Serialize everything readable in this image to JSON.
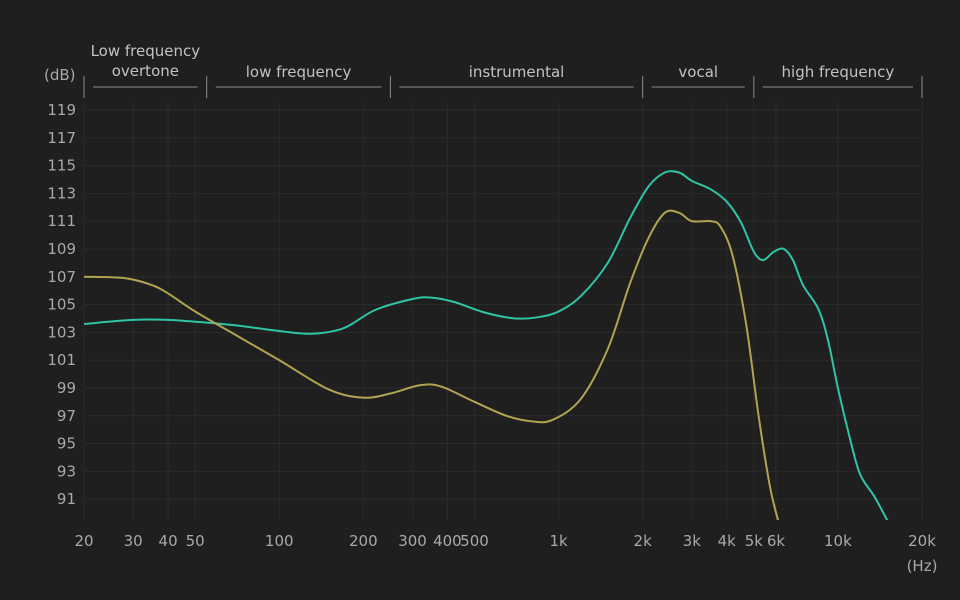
{
  "chart_data": {
    "type": "line",
    "x_scale": "log",
    "xlim": [
      20,
      20000
    ],
    "ylim": [
      89.5,
      119.5
    ],
    "x_unit": "(Hz)",
    "y_unit": "(dB)",
    "grid": true,
    "x_ticks": [
      {
        "value": 20,
        "label": "20"
      },
      {
        "value": 30,
        "label": "30"
      },
      {
        "value": 40,
        "label": "40"
      },
      {
        "value": 50,
        "label": "50"
      },
      {
        "value": 100,
        "label": "100"
      },
      {
        "value": 200,
        "label": "200"
      },
      {
        "value": 300,
        "label": "300"
      },
      {
        "value": 400,
        "label": "400"
      },
      {
        "value": 500,
        "label": "500"
      },
      {
        "value": 1000,
        "label": "1k"
      },
      {
        "value": 2000,
        "label": "2k"
      },
      {
        "value": 3000,
        "label": "3k"
      },
      {
        "value": 4000,
        "label": "4k"
      },
      {
        "value": 5000,
        "label": "5k"
      },
      {
        "value": 6000,
        "label": "6k"
      },
      {
        "value": 10000,
        "label": "10k"
      },
      {
        "value": 20000,
        "label": "20k"
      }
    ],
    "y_ticks": [
      119,
      117,
      115,
      113,
      111,
      109,
      107,
      105,
      103,
      101,
      99,
      97,
      95,
      93,
      91
    ],
    "regions": [
      {
        "label": "Low frequency overtone",
        "lines": [
          "Low frequency",
          "overtone"
        ],
        "from": 20,
        "to": 55
      },
      {
        "label": "low frequency",
        "lines": [
          "low frequency"
        ],
        "from": 55,
        "to": 250
      },
      {
        "label": "instrumental",
        "lines": [
          "instrumental"
        ],
        "from": 250,
        "to": 2000
      },
      {
        "label": "vocal",
        "lines": [
          "vocal"
        ],
        "from": 2000,
        "to": 5000
      },
      {
        "label": "high frequency",
        "lines": [
          "high frequency"
        ],
        "from": 5000,
        "to": 20000
      }
    ],
    "series": [
      {
        "color": "#2fc4a6",
        "points": [
          [
            20,
            103.6
          ],
          [
            30,
            103.9
          ],
          [
            40,
            103.9
          ],
          [
            55,
            103.7
          ],
          [
            70,
            103.5
          ],
          [
            100,
            103.1
          ],
          [
            130,
            102.9
          ],
          [
            170,
            103.3
          ],
          [
            220,
            104.6
          ],
          [
            300,
            105.4
          ],
          [
            350,
            105.5
          ],
          [
            420,
            105.2
          ],
          [
            550,
            104.4
          ],
          [
            700,
            104.0
          ],
          [
            850,
            104.1
          ],
          [
            1000,
            104.5
          ],
          [
            1200,
            105.6
          ],
          [
            1500,
            108.0
          ],
          [
            1800,
            111.2
          ],
          [
            2100,
            113.5
          ],
          [
            2400,
            114.5
          ],
          [
            2700,
            114.5
          ],
          [
            3000,
            113.9
          ],
          [
            3500,
            113.3
          ],
          [
            4000,
            112.4
          ],
          [
            4500,
            110.9
          ],
          [
            5000,
            108.8
          ],
          [
            5400,
            108.2
          ],
          [
            5900,
            108.8
          ],
          [
            6400,
            109.0
          ],
          [
            6900,
            108.2
          ],
          [
            7500,
            106.4
          ],
          [
            8500,
            104.7
          ],
          [
            9200,
            102.5
          ],
          [
            10000,
            99.0
          ],
          [
            11000,
            95.5
          ],
          [
            12000,
            92.8
          ],
          [
            13500,
            91.2
          ],
          [
            15000,
            89.5
          ]
        ]
      },
      {
        "color": "#b0a450",
        "points": [
          [
            20,
            107.0
          ],
          [
            28,
            106.9
          ],
          [
            35,
            106.4
          ],
          [
            40,
            105.8
          ],
          [
            50,
            104.5
          ],
          [
            70,
            102.8
          ],
          [
            100,
            101.0
          ],
          [
            150,
            98.9
          ],
          [
            200,
            98.3
          ],
          [
            250,
            98.6
          ],
          [
            320,
            99.2
          ],
          [
            380,
            99.1
          ],
          [
            500,
            98.0
          ],
          [
            650,
            97.0
          ],
          [
            800,
            96.6
          ],
          [
            950,
            96.7
          ],
          [
            1200,
            98.2
          ],
          [
            1500,
            101.8
          ],
          [
            1800,
            106.5
          ],
          [
            2100,
            109.8
          ],
          [
            2400,
            111.6
          ],
          [
            2700,
            111.6
          ],
          [
            3000,
            111.0
          ],
          [
            3500,
            111.0
          ],
          [
            3800,
            110.6
          ],
          [
            4200,
            108.5
          ],
          [
            4700,
            103.5
          ],
          [
            5200,
            97.0
          ],
          [
            5700,
            92.0
          ],
          [
            6100,
            89.5
          ]
        ]
      }
    ]
  }
}
